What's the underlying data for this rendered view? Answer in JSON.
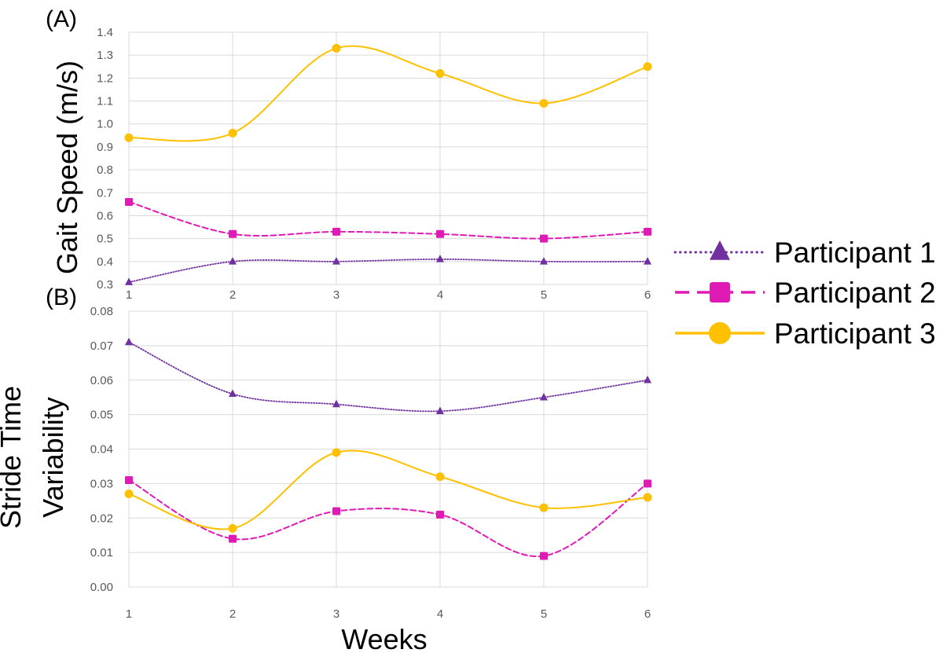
{
  "chart_data": [
    {
      "type": "line",
      "panel_label": "(A)",
      "title": "",
      "xlabel": "",
      "ylabel": "Gait Speed (m/s)",
      "categories": [
        "1",
        "2",
        "3",
        "4",
        "5",
        "6"
      ],
      "x": [
        1,
        2,
        3,
        4,
        5,
        6
      ],
      "xlim": [
        1,
        6
      ],
      "ylim": [
        0.3,
        1.4
      ],
      "yticks": [
        "0.3",
        "0.4",
        "0.5",
        "0.6",
        "0.7",
        "0.8",
        "0.9",
        "1.0",
        "1.1",
        "1.2",
        "1.3",
        "1.4"
      ],
      "grid": true,
      "series": [
        {
          "name": "Participant 1",
          "values": [
            0.31,
            0.4,
            0.4,
            0.41,
            0.4,
            0.4
          ]
        },
        {
          "name": "Participant 2",
          "values": [
            0.66,
            0.52,
            0.53,
            0.52,
            0.5,
            0.53
          ]
        },
        {
          "name": "Participant 3",
          "values": [
            0.94,
            0.96,
            1.33,
            1.22,
            1.09,
            1.25
          ]
        }
      ]
    },
    {
      "type": "line",
      "panel_label": "(B)",
      "title": "",
      "xlabel": "Weeks",
      "ylabel_lines": [
        "Stride Time",
        "Variability"
      ],
      "categories": [
        "1",
        "2",
        "3",
        "4",
        "5",
        "6"
      ],
      "x": [
        1,
        2,
        3,
        4,
        5,
        6
      ],
      "xlim": [
        1,
        6
      ],
      "ylim": [
        0.0,
        0.08
      ],
      "yticks": [
        "0.00",
        "0.01",
        "0.02",
        "0.03",
        "0.04",
        "0.05",
        "0.06",
        "0.07",
        "0.08"
      ],
      "grid": true,
      "series": [
        {
          "name": "Participant 1",
          "values": [
            0.071,
            0.056,
            0.053,
            0.051,
            0.055,
            0.06
          ]
        },
        {
          "name": "Participant 2",
          "values": [
            0.031,
            0.014,
            0.022,
            0.021,
            0.009,
            0.03
          ]
        },
        {
          "name": "Participant 3",
          "values": [
            0.027,
            0.017,
            0.039,
            0.032,
            0.023,
            0.026
          ]
        }
      ]
    }
  ],
  "legend": {
    "placement": "right",
    "items": [
      {
        "label": "Participant 1",
        "marker": "triangle",
        "style": "dotted",
        "color": "#7030a0"
      },
      {
        "label": "Participant 2",
        "marker": "square",
        "style": "dashed",
        "color": "#e01ab5"
      },
      {
        "label": "Participant 3",
        "marker": "circle",
        "style": "solid",
        "color": "#ffc000"
      }
    ]
  }
}
